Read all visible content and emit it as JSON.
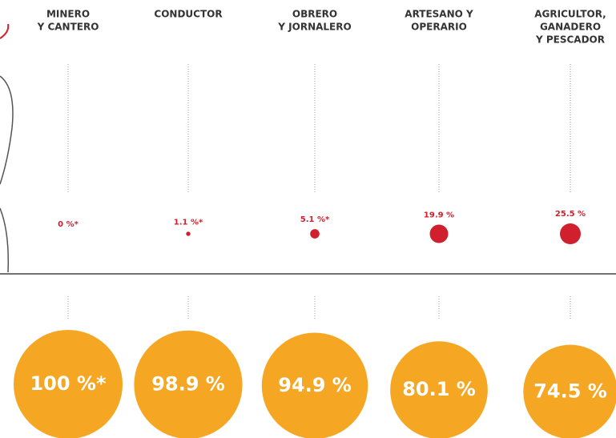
{
  "chart_data": {
    "type": "bubble",
    "categories": [
      [
        "MINERO",
        "Y CANTERO"
      ],
      [
        "CONDUCTOR"
      ],
      [
        "OBRERO",
        "Y JORNALERO"
      ],
      [
        "ARTESANO Y",
        "OPERARIO"
      ],
      [
        "AGRICULTOR,",
        "GANADERO",
        "Y PESCADOR"
      ]
    ],
    "series": [
      {
        "color": "#d0202e",
        "values": [
          0,
          1.1,
          5.1,
          19.9,
          25.5
        ],
        "value_labels": [
          "0 %*",
          "1.1 %*",
          "5.1 %*",
          "19.9 %",
          "25.5 %"
        ]
      },
      {
        "color": "#f5a623",
        "values": [
          100,
          98.9,
          94.9,
          80.1,
          74.5
        ],
        "value_labels": [
          "100 %*",
          "98.9 %",
          "94.9 %",
          "80.1 %",
          "74.5 %"
        ]
      }
    ]
  }
}
